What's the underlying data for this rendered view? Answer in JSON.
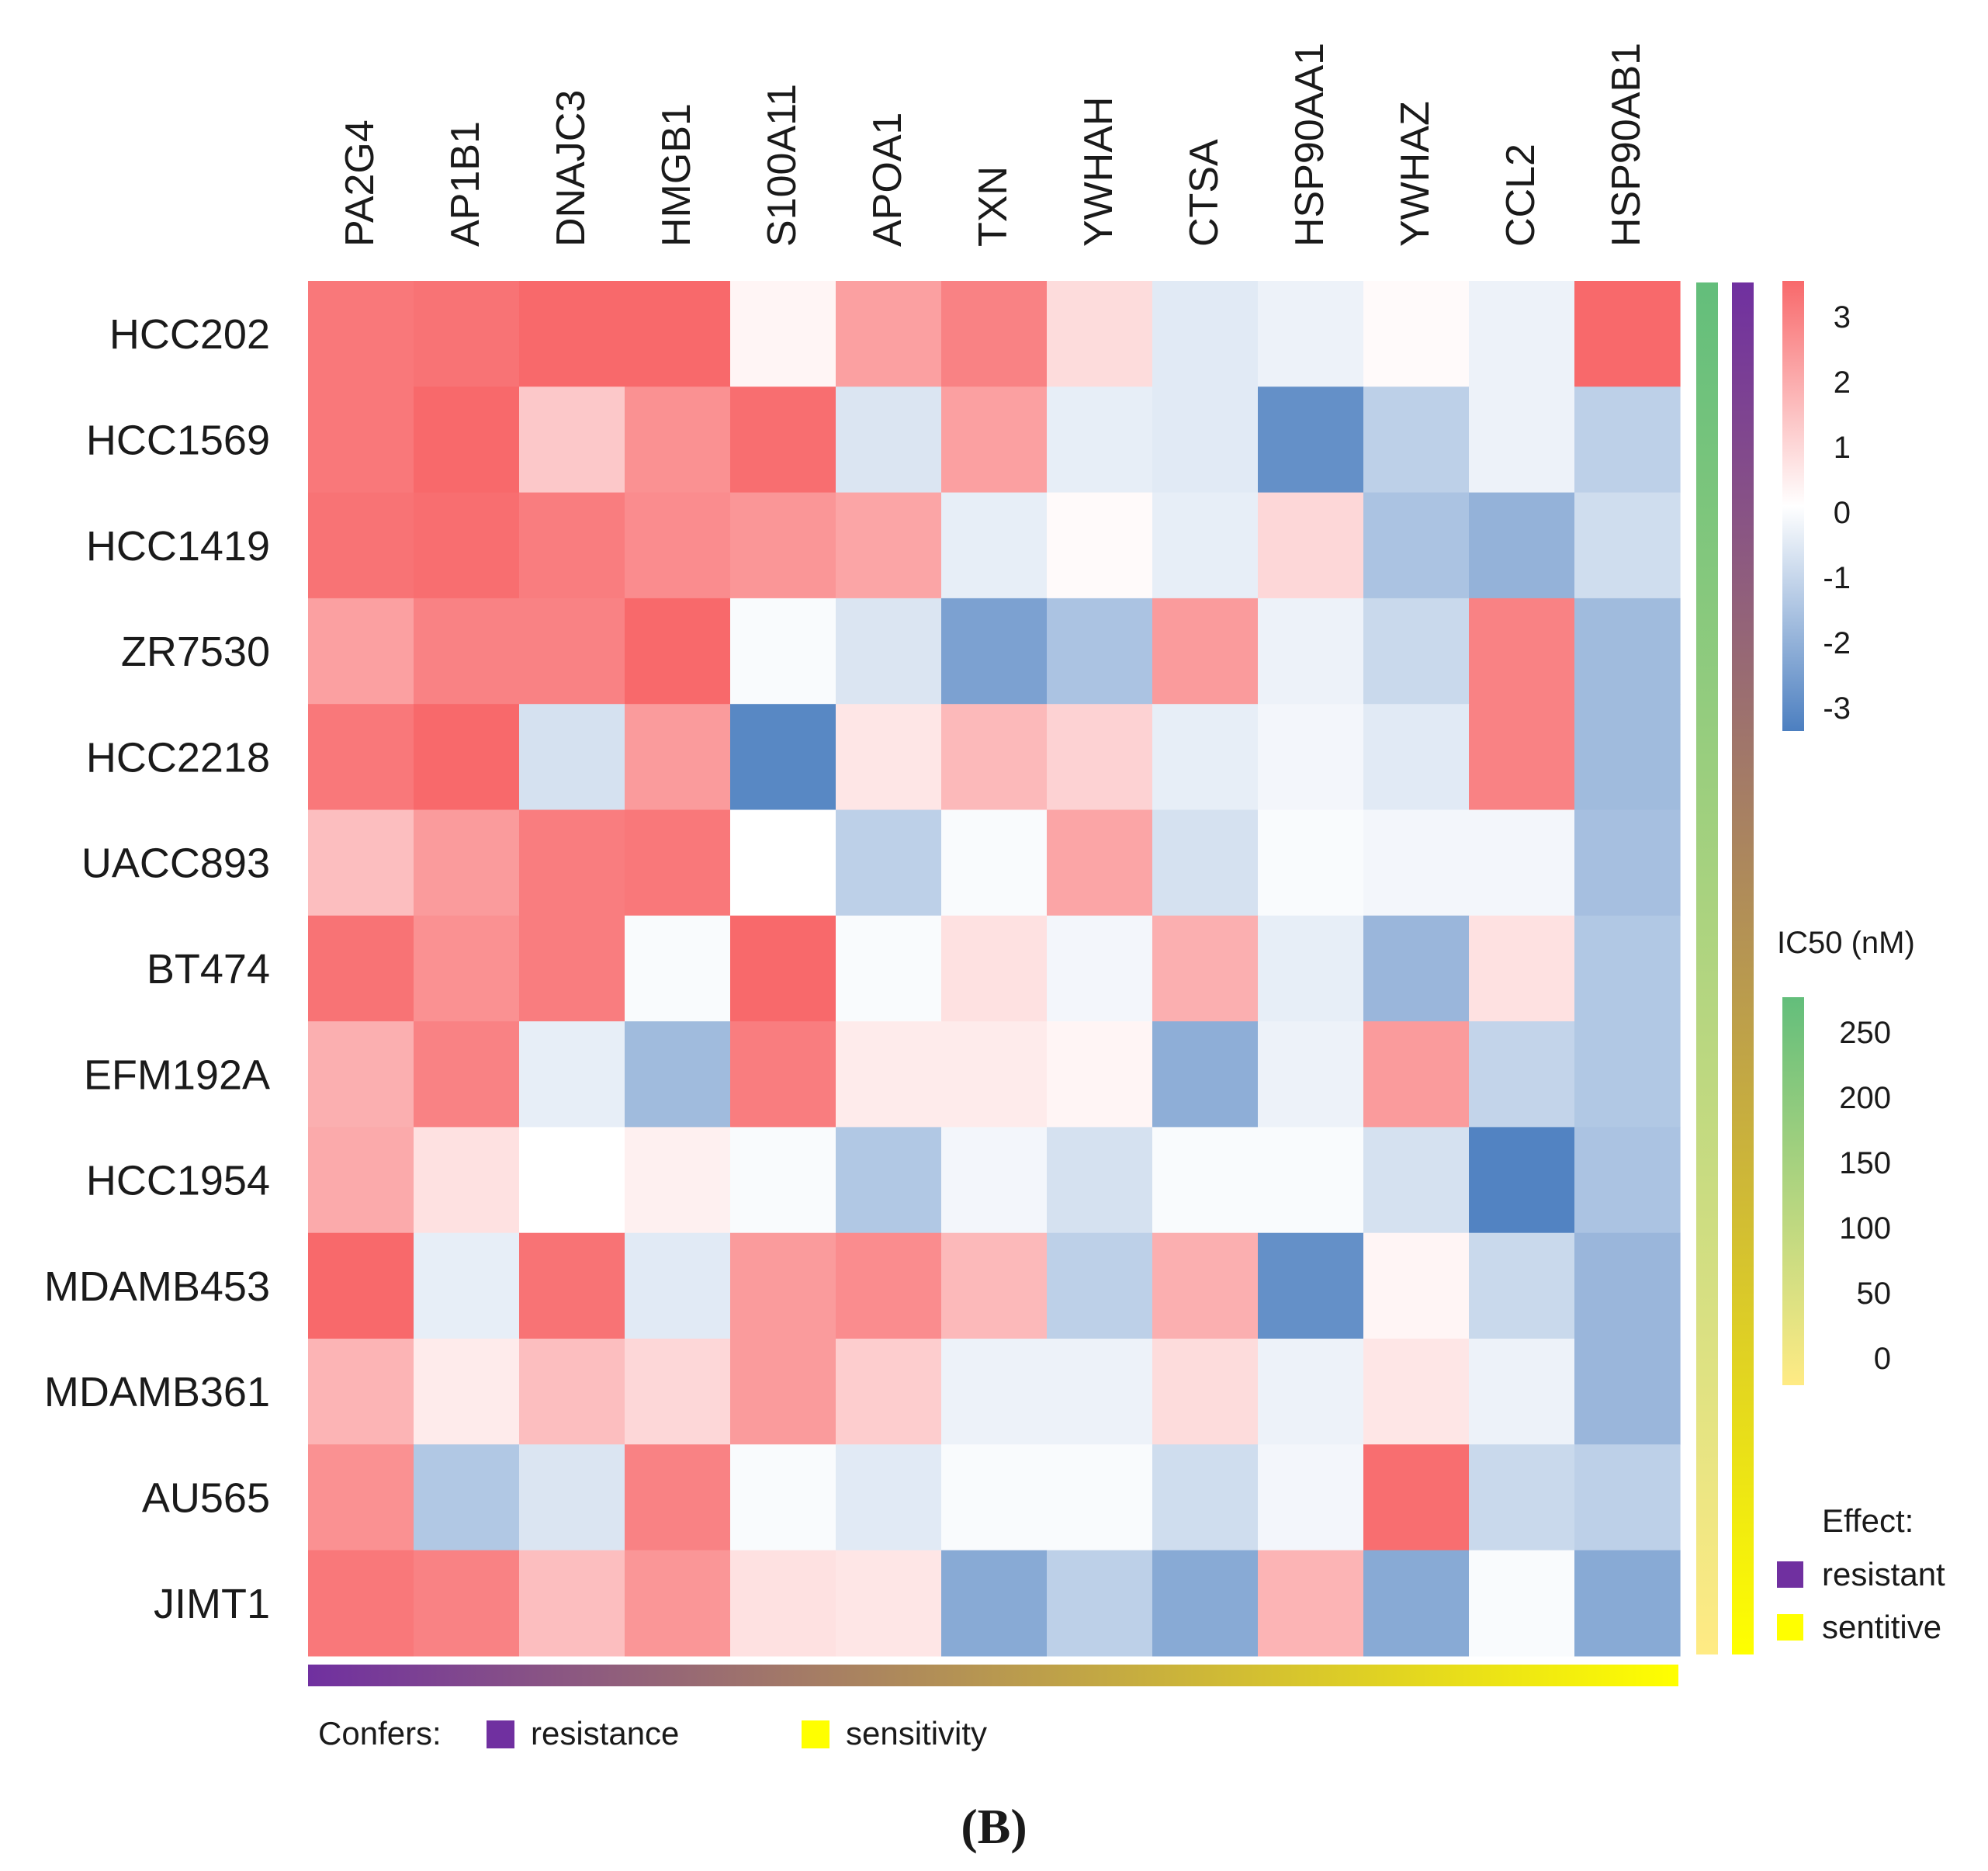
{
  "chart_data": {
    "type": "heatmap",
    "panel_label": "(B)",
    "columns": [
      "PA2G4",
      "AP1B1",
      "DNAJC3",
      "HMGB1",
      "S100A11",
      "APOA1",
      "TXN",
      "YWHAH",
      "CTSA",
      "HSP90AA1",
      "YWHAZ",
      "CCL2",
      "HSP90AB1"
    ],
    "rows": [
      "HCC202",
      "HCC1569",
      "HCC1419",
      "ZR7530",
      "HCC2218",
      "UACC893",
      "BT474",
      "EFM192A",
      "HCC1954",
      "MDAMB453",
      "MDAMB361",
      "AU565",
      "JIMT1"
    ],
    "values": [
      [
        2.7,
        2.8,
        3.0,
        3.0,
        0.2,
        1.9,
        2.5,
        0.7,
        -0.5,
        -0.3,
        0.1,
        -0.3,
        3.1
      ],
      [
        2.7,
        3.0,
        1.1,
        2.2,
        2.9,
        -0.6,
        1.9,
        -0.4,
        -0.5,
        -2.6,
        -1.1,
        -0.3,
        -1.1
      ],
      [
        2.8,
        2.9,
        2.6,
        2.3,
        2.1,
        1.8,
        -0.4,
        0.1,
        -0.4,
        0.8,
        -1.4,
        -1.8,
        -0.8
      ],
      [
        1.9,
        2.5,
        2.5,
        3.0,
        -0.1,
        -0.6,
        -2.2,
        -1.4,
        2.0,
        -0.3,
        -0.9,
        2.5,
        -1.6
      ],
      [
        2.7,
        3.0,
        -0.7,
        2.0,
        -2.8,
        0.5,
        1.4,
        0.9,
        -0.4,
        -0.2,
        -0.5,
        2.5,
        -1.6
      ],
      [
        1.3,
        2.0,
        2.6,
        2.7,
        0.0,
        -1.1,
        -0.1,
        1.8,
        -0.7,
        -0.1,
        -0.2,
        -0.2,
        -1.5
      ],
      [
        2.8,
        2.2,
        2.6,
        -0.1,
        3.0,
        -0.1,
        0.6,
        -0.2,
        1.6,
        -0.4,
        -1.7,
        0.6,
        -1.3
      ],
      [
        1.6,
        2.5,
        -0.4,
        -1.6,
        2.6,
        0.4,
        0.4,
        0.2,
        -1.9,
        -0.3,
        2.0,
        -1.0,
        -1.3
      ],
      [
        1.7,
        0.6,
        0.0,
        0.3,
        -0.1,
        -1.3,
        -0.2,
        -0.7,
        -0.1,
        -0.1,
        -0.7,
        -2.9,
        -1.4
      ],
      [
        3.0,
        -0.4,
        2.8,
        -0.5,
        2.0,
        2.3,
        1.4,
        -1.1,
        1.6,
        -2.6,
        0.2,
        -0.9,
        -1.7
      ],
      [
        1.5,
        0.4,
        1.3,
        0.8,
        2.0,
        1.0,
        -0.3,
        -0.3,
        0.7,
        -0.3,
        0.5,
        -0.3,
        -1.7
      ],
      [
        2.2,
        -1.3,
        -0.6,
        2.5,
        -0.1,
        -0.5,
        -0.1,
        -0.1,
        -0.8,
        -0.2,
        2.9,
        -0.9,
        -1.1
      ],
      [
        2.7,
        2.5,
        1.3,
        2.1,
        0.6,
        0.5,
        -2.0,
        -1.1,
        -2.0,
        1.5,
        -2.0,
        -0.1,
        -2.0
      ]
    ],
    "color_scale": {
      "min": -3,
      "max": 3,
      "low_color": "#4c7fc0",
      "mid_color": "#ffffff",
      "high_color": "#f8696b",
      "ticks": [
        "3",
        "2",
        "1",
        "0",
        "-1",
        "-2",
        "-3"
      ]
    },
    "row_annotation": {
      "title": "IC50 (nM)",
      "ticks": [
        "250",
        "200",
        "150",
        "100",
        "50",
        "0"
      ],
      "high_color": "#63be7b",
      "low_color": "#ffeb84"
    },
    "effect_annotation": {
      "title": "Effect:",
      "resistant_label": "resistant",
      "sensitive_label": "sentitive",
      "resistant_color": "#7030a0",
      "sensitive_color": "#ffff00"
    },
    "confers_annotation": {
      "title": "Confers:",
      "resistance_label": "resistance",
      "sensitivity_label": "sensitivity",
      "resistance_color": "#7030a0",
      "sensitivity_color": "#ffff00"
    }
  }
}
